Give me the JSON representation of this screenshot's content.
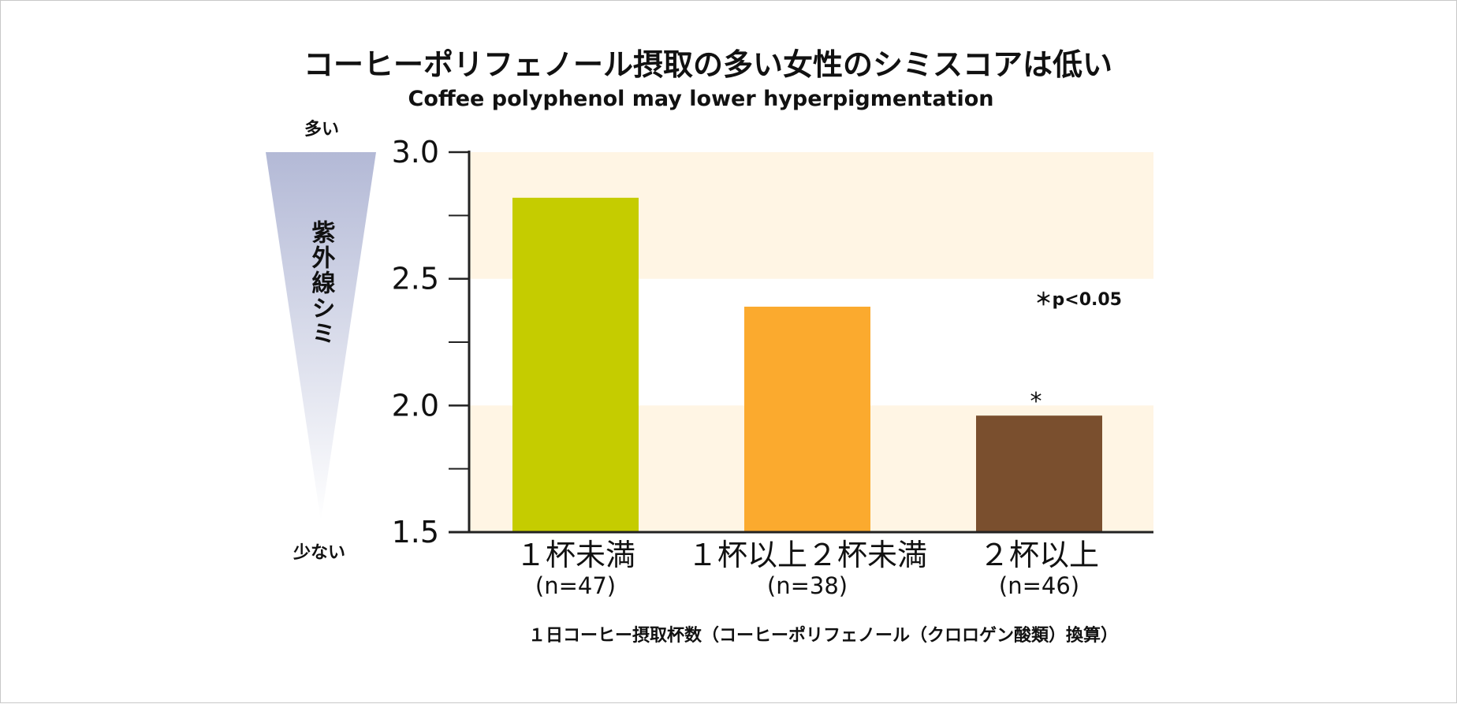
{
  "chart_data": {
    "type": "bar",
    "title": "コーヒーポリフェノール摂取の多い女性のシミスコアは低い",
    "subtitle": "Coffee polyphenol may lower hyperpigmentation",
    "categories": [
      "１杯未満",
      "１杯以上２杯未満",
      "２杯以上"
    ],
    "n_labels": [
      "(n=47)",
      "(n=38)",
      "(n=46)"
    ],
    "values": [
      2.82,
      2.39,
      1.96
    ],
    "colors": [
      "#c5cc00",
      "#fbaa2e",
      "#7a4f2e"
    ],
    "significance": [
      "",
      "",
      "*"
    ],
    "ylim": [
      1.5,
      3.0
    ],
    "yticks": [
      1.5,
      2.0,
      2.5,
      3.0
    ],
    "ytick_labels": [
      "1.5",
      "2.0",
      "2.5",
      "3.0"
    ],
    "minor_ticks": [
      1.75,
      2.25,
      2.75
    ],
    "bands": [
      [
        1.5,
        2.0
      ],
      [
        2.5,
        3.0
      ]
    ],
    "band_color": "#fff5e4",
    "xlabel": "１日コーヒー摂取杯数（コーヒーポリフェノール（クロロゲン酸類）換算）",
    "ylabel": "紫外線シミ",
    "y_top_label": "多い",
    "y_bottom_label": "少ない",
    "note": "＊p<0.05",
    "gradient_colors": [
      "#b3b9d6",
      "#ffffff"
    ]
  }
}
